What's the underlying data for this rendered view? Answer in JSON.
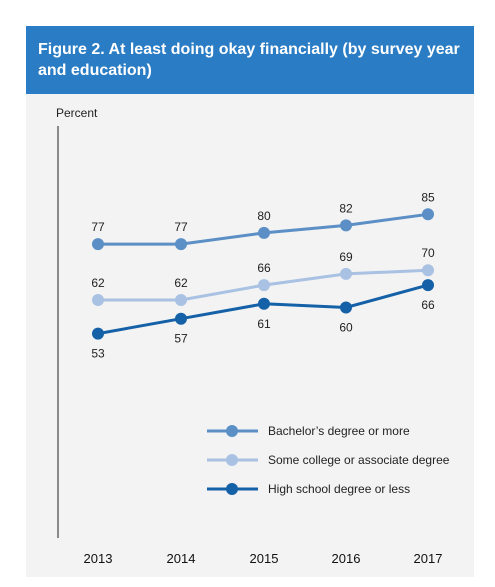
{
  "header": {
    "title": "Figure 2. At least doing okay financially (by survey year and education)"
  },
  "chart_data": {
    "type": "line",
    "title": "Figure 2. At least doing okay financially (by survey year and education)",
    "ylabel": "Percent",
    "xlabel": "",
    "x": [
      "2013",
      "2014",
      "2015",
      "2016",
      "2017"
    ],
    "ylim": [
      0,
      100
    ],
    "grid": false,
    "legend_position": "bottom-right",
    "series": [
      {
        "name": "Bachelor’s degree or more",
        "values": [
          77,
          77,
          80,
          82,
          85
        ],
        "color": "#5b8fc6",
        "label_position": "above"
      },
      {
        "name": "Some college or associate degree",
        "values": [
          62,
          62,
          66,
          69,
          70
        ],
        "color": "#a9c1e2",
        "label_position": "above"
      },
      {
        "name": "High school degree or less",
        "values": [
          53,
          57,
          61,
          60,
          66
        ],
        "color": "#1461a8",
        "label_position": "below"
      }
    ]
  }
}
